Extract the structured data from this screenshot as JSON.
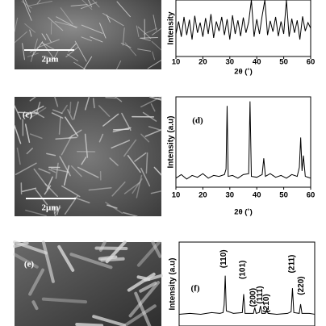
{
  "images": [
    {
      "scale_bar": "2μm"
    },
    {
      "label": "(c)",
      "scale_bar": "2μm"
    },
    {
      "label": "(e)"
    }
  ],
  "chart_data": [
    {
      "type": "line",
      "ylabel": "Intensity",
      "xlabel": "2θ (˚)",
      "xlim": [
        10,
        60
      ],
      "xticks": [
        10,
        20,
        30,
        40,
        50,
        60
      ],
      "ylim": [
        0,
        100
      ],
      "color": "#000000",
      "x": [
        10,
        11,
        12,
        13,
        14,
        15,
        16,
        17,
        18,
        19,
        20,
        21,
        22,
        23,
        24,
        25,
        26,
        27,
        28,
        29,
        30,
        31,
        32,
        33,
        34,
        35,
        36,
        37,
        38,
        39,
        40,
        41,
        42,
        43,
        44,
        45,
        46,
        47,
        48,
        49,
        50,
        51,
        52,
        53,
        54,
        55,
        56,
        57,
        58,
        59,
        60
      ],
      "values": [
        40,
        62,
        35,
        70,
        38,
        65,
        30,
        72,
        42,
        60,
        35,
        68,
        40,
        75,
        33,
        62,
        45,
        70,
        38,
        66,
        30,
        73,
        40,
        64,
        36,
        69,
        42,
        61,
        100,
        35,
        66,
        40,
        72,
        100,
        38,
        63,
        44,
        70,
        36,
        62,
        40,
        100,
        35,
        67,
        42,
        64,
        30,
        71,
        45,
        60,
        50
      ]
    },
    {
      "type": "line",
      "label": "(d)",
      "ylabel": "Intensity (a.u)",
      "xlabel": "2θ (˚)",
      "xlim": [
        10,
        60
      ],
      "xticks": [
        10,
        20,
        30,
        40,
        50,
        60
      ],
      "ylim": [
        0,
        100
      ],
      "color": "#000000",
      "x": [
        10,
        12,
        14,
        16,
        18,
        20,
        22,
        24,
        26,
        28,
        28.6,
        29,
        29.4,
        31,
        33,
        35,
        37,
        37.5,
        38,
        40,
        42,
        42.6,
        43.2,
        45,
        47,
        49,
        51,
        53,
        55,
        55.8,
        56.3,
        56.8,
        57.3,
        58,
        60
      ],
      "values": [
        10,
        14,
        9,
        13,
        11,
        15,
        10,
        13,
        12,
        14,
        20,
        90,
        12,
        13,
        10,
        14,
        15,
        95,
        12,
        11,
        14,
        32,
        12,
        15,
        11,
        13,
        10,
        14,
        12,
        22,
        55,
        18,
        35,
        12,
        10
      ]
    },
    {
      "type": "line",
      "label": "(f)",
      "ylabel": "Intensity (a.u)",
      "xlim": [
        10,
        60
      ],
      "ylim": [
        0,
        100
      ],
      "color": "#000000",
      "x": [
        10,
        14,
        18,
        22,
        25,
        26.2,
        26.6,
        27,
        27.4,
        30,
        33.3,
        33.8,
        34.3,
        37.4,
        37.9,
        38.4,
        39.5,
        40,
        40.5,
        41.8,
        42.3,
        42.8,
        46,
        50,
        51.3,
        51.8,
        52.3,
        54.3,
        54.8,
        55.3,
        58,
        60
      ],
      "values": [
        14,
        15,
        14,
        16,
        15,
        16,
        25,
        60,
        18,
        15,
        16,
        38,
        15,
        15,
        22,
        15,
        16,
        24,
        15,
        15,
        20,
        15,
        14,
        15,
        17,
        45,
        16,
        15,
        26,
        15,
        15,
        14
      ],
      "annotations": [
        {
          "text": "(110)",
          "x": 26.5,
          "y": 80
        },
        {
          "text": "(101)",
          "x": 33.5,
          "y": 67
        },
        {
          "text": "(200)",
          "x": 37.3,
          "y": 34
        },
        {
          "text": "(111)",
          "x": 39.8,
          "y": 37
        },
        {
          "text": "(210)",
          "x": 42.2,
          "y": 27
        },
        {
          "text": "(211)",
          "x": 51.6,
          "y": 74
        },
        {
          "text": "(220)",
          "x": 55,
          "y": 48
        }
      ]
    }
  ]
}
